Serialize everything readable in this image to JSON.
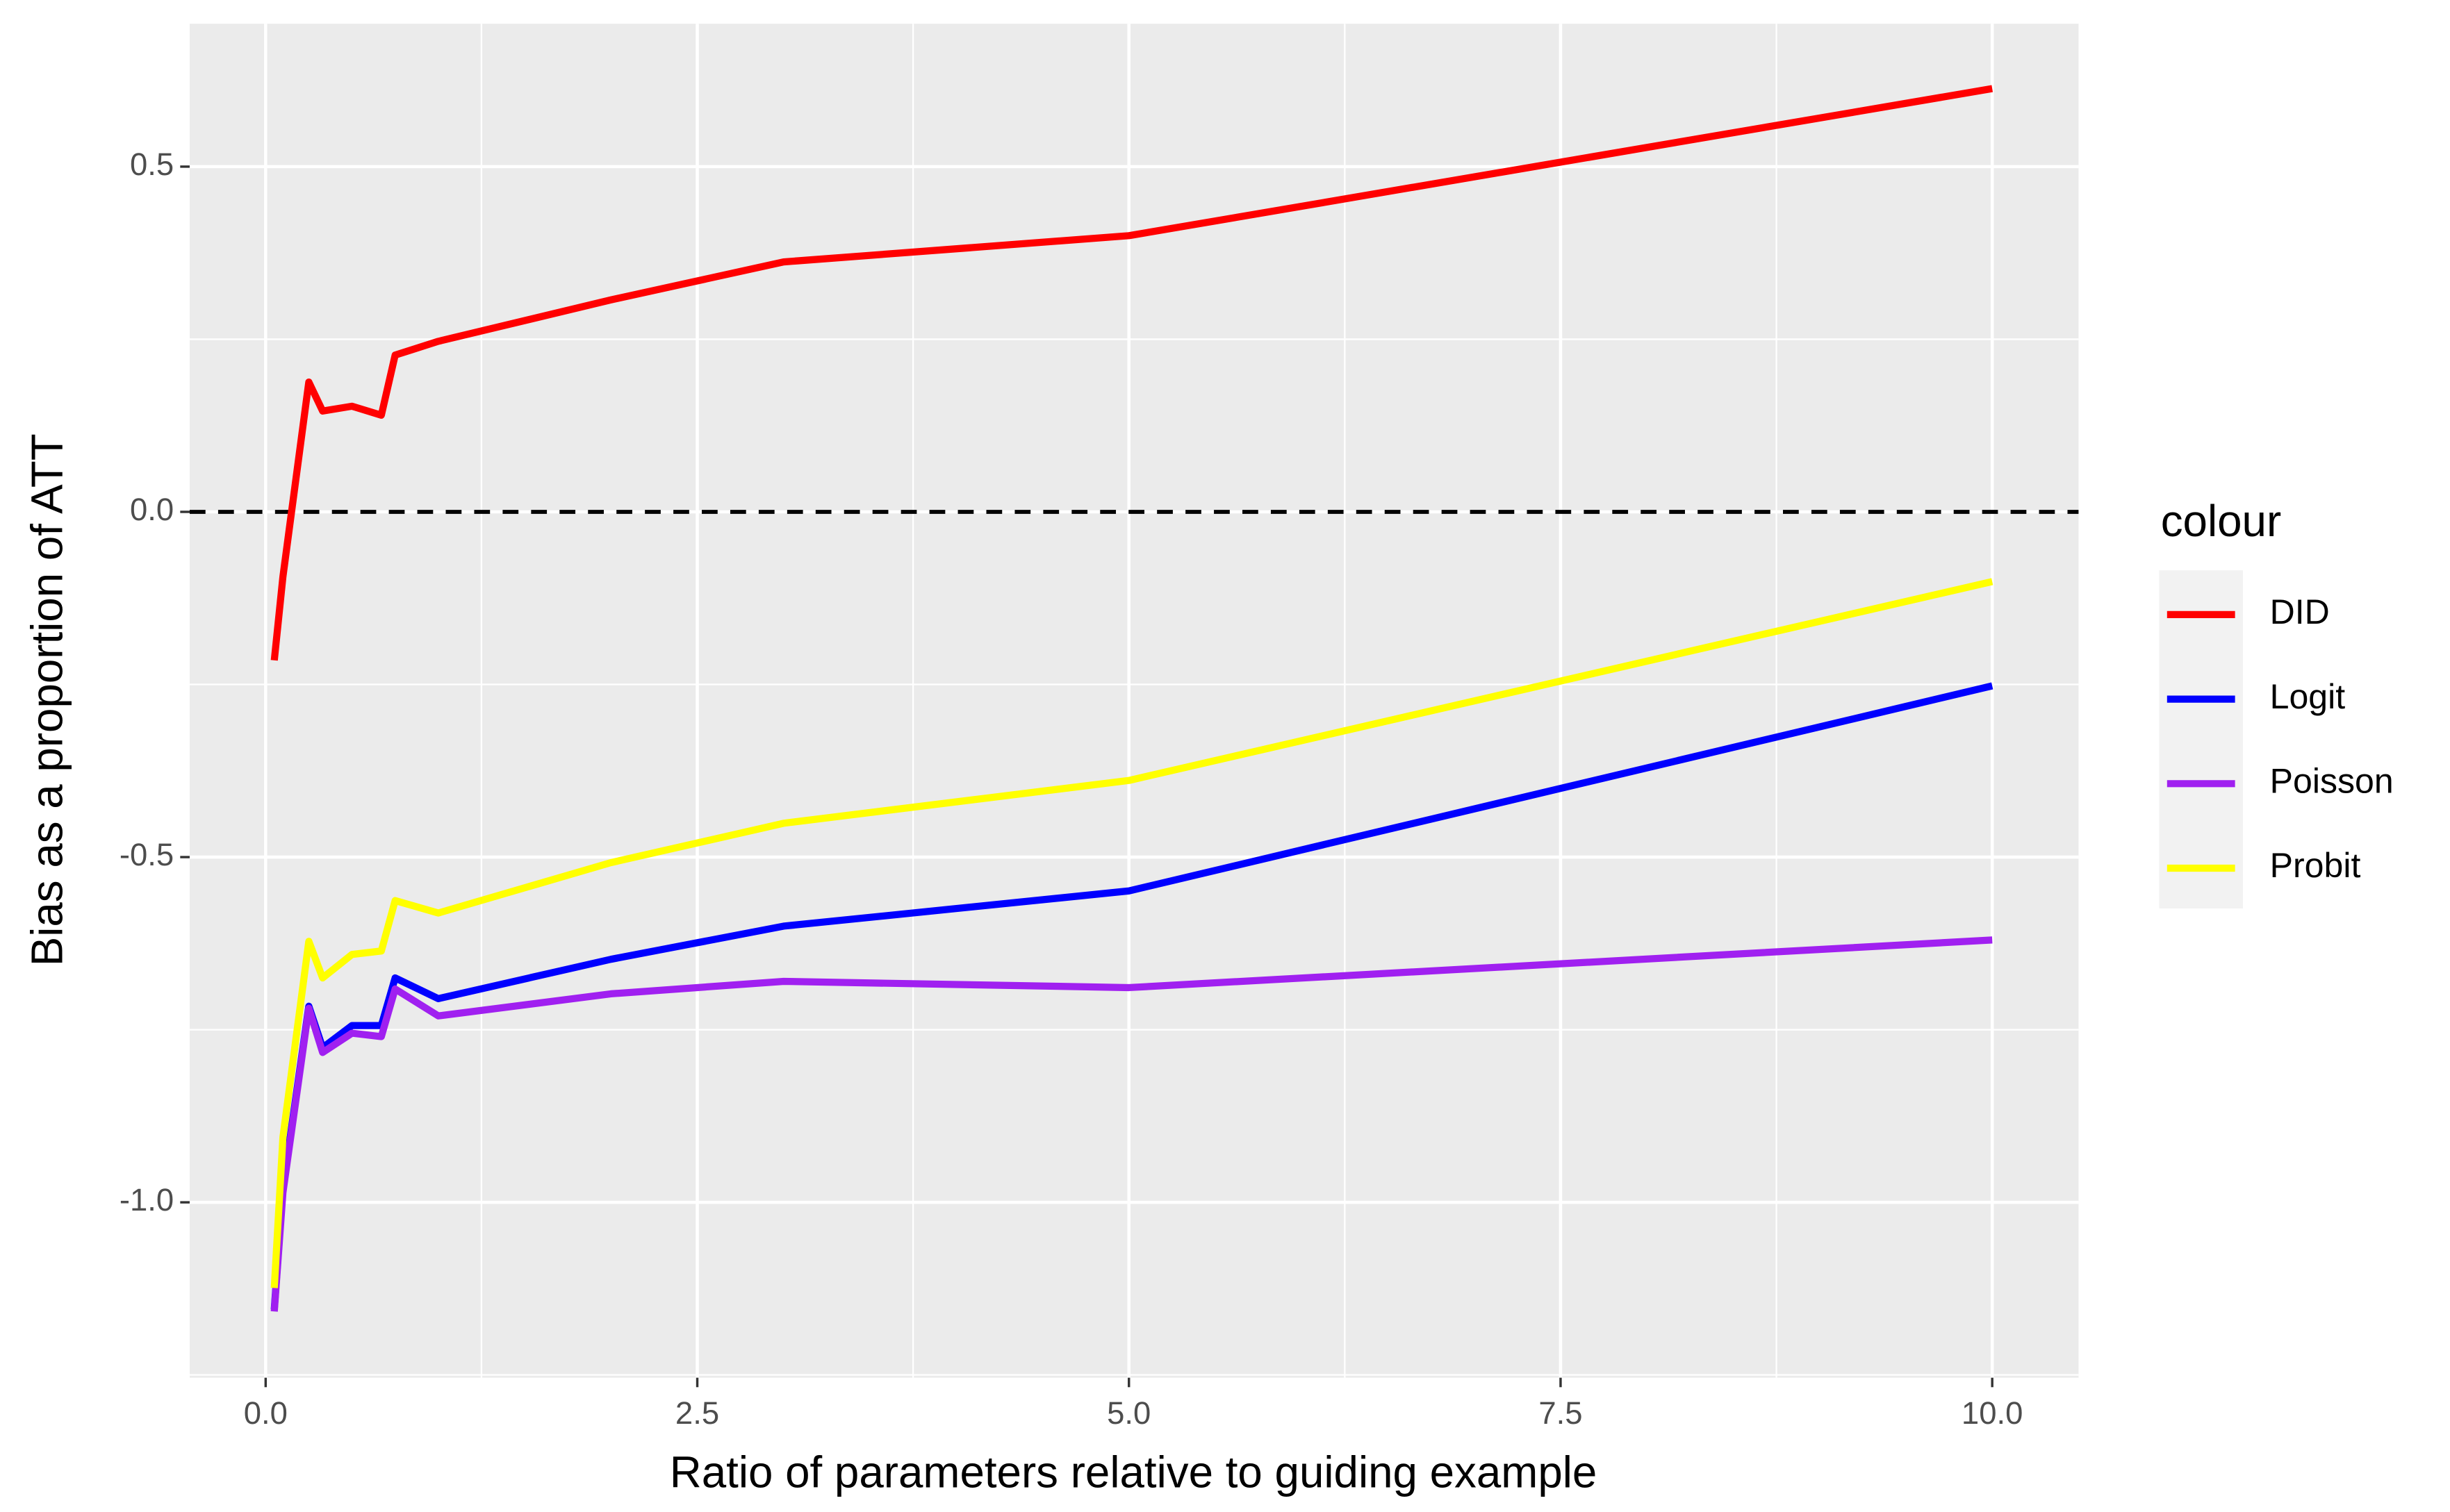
{
  "chart_data": {
    "type": "line",
    "x_label": "Ratio of parameters relative to guiding example",
    "y_label": "Bias as a proportion of ATT",
    "legend_title": "colour",
    "legend_position": "right",
    "grid": true,
    "hline": 0,
    "x": [
      0.05,
      0.1,
      0.25,
      0.33,
      0.5,
      0.67,
      0.75,
      1,
      2,
      3,
      5,
      10
    ],
    "series": [
      {
        "name": "DID",
        "color": "#ff0000",
        "values": [
          -0.215,
          -0.094,
          0.188,
          0.146,
          0.153,
          0.14,
          0.227,
          0.247,
          0.307,
          0.362,
          0.4,
          0.613
        ]
      },
      {
        "name": "Logit",
        "color": "#0000ff",
        "values": [
          -1.155,
          -0.98,
          -0.716,
          -0.776,
          -0.744,
          -0.744,
          -0.675,
          -0.705,
          -0.648,
          -0.6,
          -0.549,
          -0.252
        ]
      },
      {
        "name": "Poisson",
        "color": "#a020f0",
        "values": [
          -1.158,
          -0.986,
          -0.719,
          -0.783,
          -0.755,
          -0.76,
          -0.691,
          -0.73,
          -0.698,
          -0.68,
          -0.689,
          -0.62
        ]
      },
      {
        "name": "Probit",
        "color": "#ffff00",
        "values": [
          -1.124,
          -0.906,
          -0.622,
          -0.675,
          -0.641,
          -0.636,
          -0.563,
          -0.581,
          -0.508,
          -0.451,
          -0.389,
          -0.101
        ]
      }
    ],
    "xlim": [
      -0.44,
      10.5
    ],
    "ylim": [
      -1.254,
      0.707
    ],
    "xticks": [
      {
        "value": 0,
        "label": "0.0"
      },
      {
        "value": 2.5,
        "label": "2.5"
      },
      {
        "value": 5,
        "label": "5.0"
      },
      {
        "value": 7.5,
        "label": "7.5"
      },
      {
        "value": 10,
        "label": "10.0"
      }
    ],
    "yticks": [
      {
        "value": -1,
        "label": "-1.0"
      },
      {
        "value": -0.5,
        "label": "-0.5"
      },
      {
        "value": 0,
        "label": "0.0"
      },
      {
        "value": 0.5,
        "label": "0.5"
      }
    ]
  }
}
